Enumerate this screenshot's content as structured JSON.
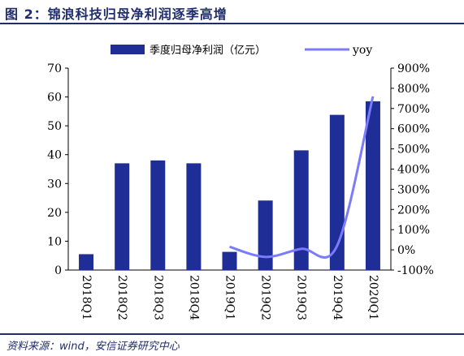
{
  "header": {
    "title": "图 2：锦浪科技归母净利润逐季高增"
  },
  "footer": {
    "source": "资料来源：wind，安信证券研究中心"
  },
  "chart_data": {
    "type": "bar",
    "categories": [
      "2018Q1",
      "2018Q2",
      "2018Q3",
      "2018Q4",
      "2019Q1",
      "2019Q2",
      "2019Q3",
      "2019Q4",
      "2020Q1"
    ],
    "series": [
      {
        "name": "季度归母净利润（亿元）",
        "type": "bar",
        "axis": "left",
        "color": "#1f2e96",
        "values": [
          5.5,
          37,
          38,
          37,
          6.3,
          24.1,
          41.5,
          53.8,
          58.5
        ]
      },
      {
        "name": "yoy",
        "type": "line",
        "axis": "right",
        "color": "#7b7bff",
        "values_pct": [
          null,
          null,
          null,
          null,
          15,
          -35,
          5,
          20,
          760
        ]
      }
    ],
    "left_axis": {
      "min": 0,
      "max": 70,
      "step": 10,
      "ticks": [
        "0",
        "10",
        "20",
        "30",
        "40",
        "50",
        "60",
        "70"
      ]
    },
    "right_axis": {
      "min": -100,
      "max": 900,
      "step": 100,
      "ticks": [
        "-100%",
        "0%",
        "100%",
        "200%",
        "300%",
        "400%",
        "500%",
        "600%",
        "700%",
        "800%",
        "900%"
      ]
    },
    "legend_placement": "top",
    "grid": false
  }
}
